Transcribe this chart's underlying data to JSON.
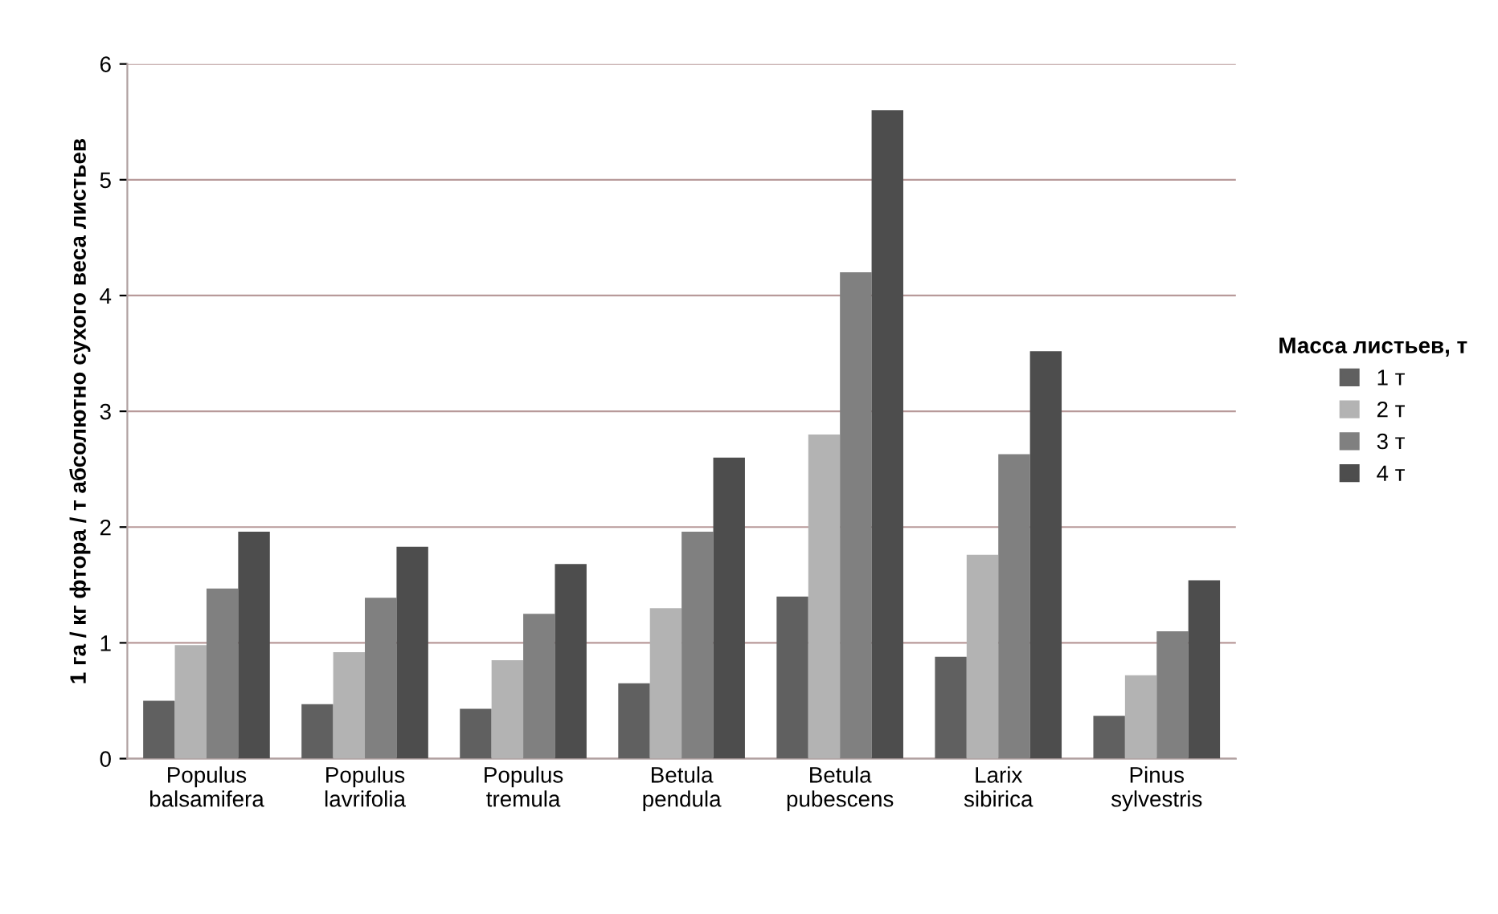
{
  "chart_data": {
    "type": "bar",
    "ylabel": "1 га / кг фтора / т абсолютно сухого веса листьев",
    "legend_title": "Масса листьев, т",
    "categories": [
      "Populus balsamifera",
      "Populus lavrifolia",
      "Populus tremula",
      "Betula pendula",
      "Betula pubescens",
      "Larix sibirica",
      "Pinus sylvestris"
    ],
    "series": [
      {
        "name": "1 т",
        "color": "#606060",
        "values": [
          0.5,
          0.47,
          0.43,
          0.65,
          1.4,
          0.88,
          0.37
        ]
      },
      {
        "name": "2 т",
        "color": "#b3b3b3",
        "values": [
          0.98,
          0.92,
          0.85,
          1.3,
          2.8,
          1.76,
          0.72
        ]
      },
      {
        "name": "3 т",
        "color": "#808080",
        "values": [
          1.47,
          1.39,
          1.25,
          1.96,
          4.2,
          2.63,
          1.1
        ]
      },
      {
        "name": "4 т",
        "color": "#4d4d4d",
        "values": [
          1.96,
          1.83,
          1.68,
          2.6,
          5.6,
          3.52,
          1.54
        ]
      }
    ],
    "ylim": [
      0,
      6
    ],
    "yticks": [
      0,
      1,
      2,
      3,
      4,
      5,
      6
    ],
    "grid": "y",
    "legend": "right"
  }
}
